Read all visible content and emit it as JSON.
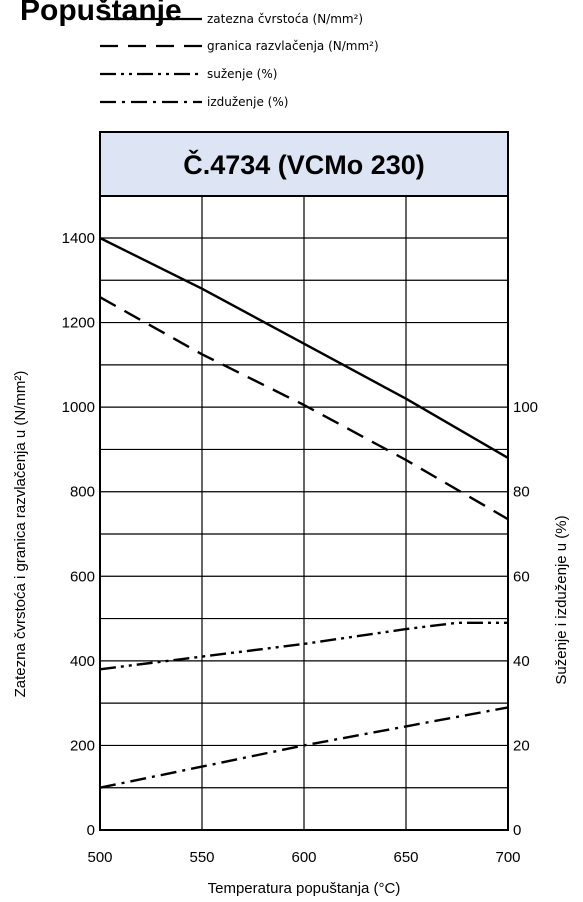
{
  "page_title": "Popuštanje",
  "chart_data": {
    "type": "line",
    "title": "Č.4734 (VCMo 230)",
    "xlabel": "Temperatura popuštanja (°C)",
    "ylabel_left": "Zatezna čvrstoća i granica razvlačenja u (N/mm²)",
    "ylabel_right": "Suženje i izduženje u (%)",
    "xlim": [
      500,
      700
    ],
    "ylim_left": [
      0,
      1400
    ],
    "ylim_right": [
      0,
      140
    ],
    "x_ticks": [
      "500",
      "550",
      "600",
      "650",
      "700"
    ],
    "y_ticks_left": [
      "0",
      "200",
      "400",
      "600",
      "800",
      "1000",
      "1200",
      "1400"
    ],
    "y_ticks_right": [
      "0",
      "20",
      "40",
      "60",
      "80",
      "100"
    ],
    "grid": true,
    "legend_position": "top",
    "series": [
      {
        "name": "zatezna čvrstoća (N/mm²)",
        "axis": "left",
        "dash": "solid",
        "x": [
          500,
          550,
          600,
          650,
          700
        ],
        "y": [
          1400,
          1280,
          1150,
          1020,
          880
        ]
      },
      {
        "name": "granica razvlačenja (N/mm²)",
        "axis": "left",
        "dash": "dashed",
        "x": [
          500,
          550,
          600,
          650,
          700
        ],
        "y": [
          1260,
          1125,
          1005,
          875,
          735
        ]
      },
      {
        "name": "suženje (%)",
        "axis": "right",
        "dash": "dash-dot-dot",
        "x": [
          500,
          550,
          600,
          650,
          675,
          700
        ],
        "y": [
          38,
          41,
          44,
          47.5,
          49,
          49
        ]
      },
      {
        "name": "izduženje (%)",
        "axis": "right",
        "dash": "dash-dot",
        "x": [
          500,
          550,
          600,
          650,
          700
        ],
        "y": [
          10,
          15,
          20,
          24.5,
          29
        ]
      }
    ]
  }
}
